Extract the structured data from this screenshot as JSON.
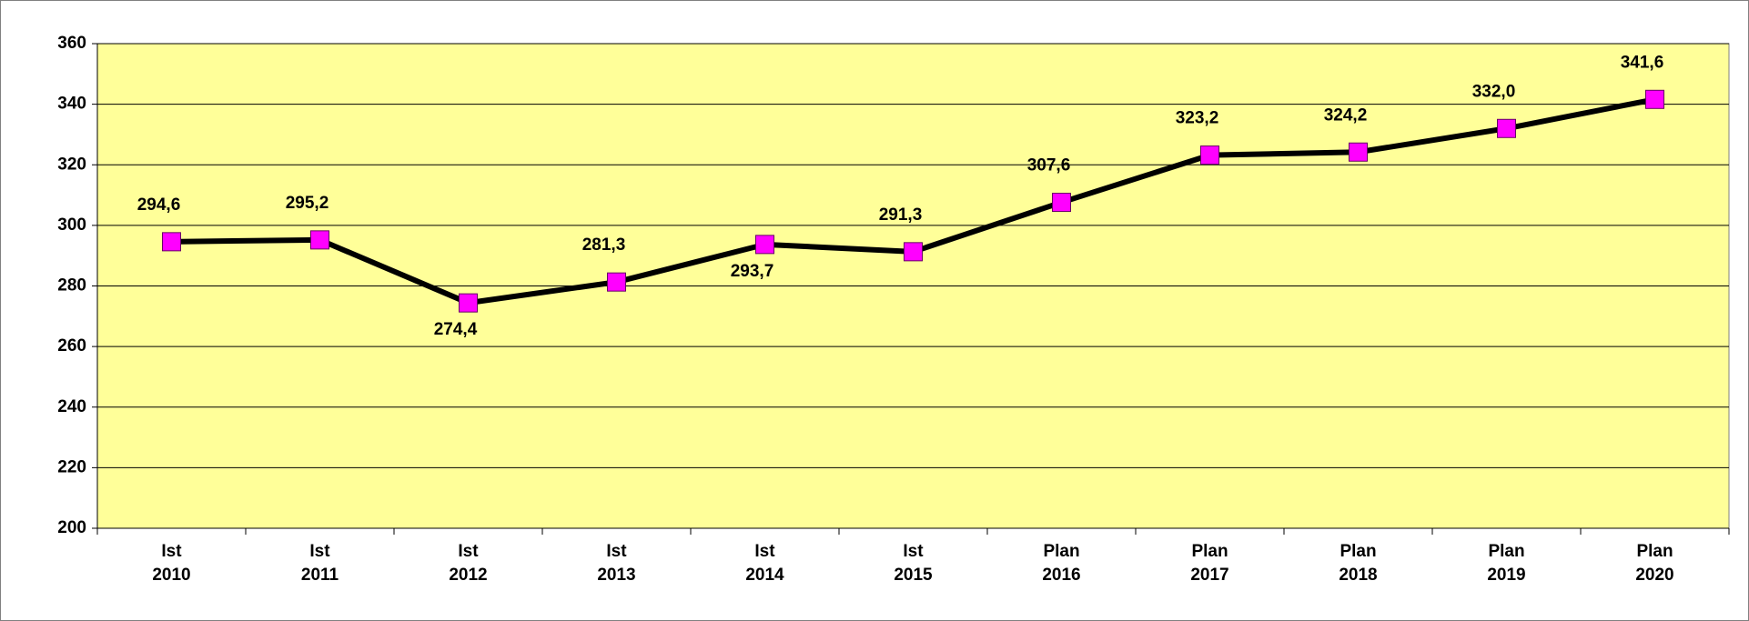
{
  "chart_data": {
    "type": "line",
    "categories": [
      [
        "Ist",
        "2010"
      ],
      [
        "Ist",
        "2011"
      ],
      [
        "Ist",
        "2012"
      ],
      [
        "Ist",
        "2013"
      ],
      [
        "Ist",
        "2014"
      ],
      [
        "Ist",
        "2015"
      ],
      [
        "Plan",
        "2016"
      ],
      [
        "Plan",
        "2017"
      ],
      [
        "Plan",
        "2018"
      ],
      [
        "Plan",
        "2019"
      ],
      [
        "Plan",
        "2020"
      ]
    ],
    "series": [
      {
        "color": "#000000",
        "marker_color": "#ff00ff",
        "values": [
          294.6,
          295.2,
          274.4,
          281.3,
          293.7,
          291.3,
          307.6,
          323.2,
          324.2,
          332.0,
          341.6
        ],
        "value_labels": [
          "294,6",
          "295,2",
          "274,4",
          "281,3",
          "293,7",
          "291,3",
          "307,6",
          "323,2",
          "324,2",
          "332,0",
          "341,6"
        ]
      }
    ],
    "ylim": [
      200,
      360
    ],
    "yticks": [
      200,
      220,
      240,
      260,
      280,
      300,
      320,
      340,
      360
    ],
    "grid": true,
    "plot_background": "#ffff99"
  }
}
